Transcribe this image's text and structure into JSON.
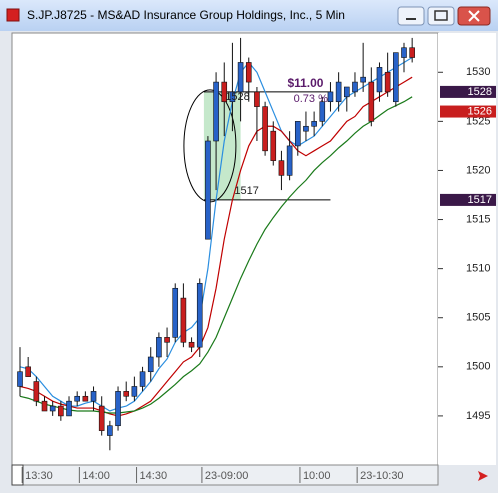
{
  "window": {
    "title": "S.JP.J8725 - MS&AD Insurance Group Holdings, Inc., 5 Min"
  },
  "chart_data": {
    "type": "candlestick",
    "categories": [
      null,
      "13:30",
      null,
      null,
      null,
      null,
      null,
      null,
      "14:00",
      null,
      null,
      null,
      null,
      null,
      null,
      "14:30",
      null,
      null,
      null,
      null,
      null,
      null,
      null,
      "23-09:00",
      null,
      null,
      null,
      null,
      null,
      null,
      null,
      null,
      null,
      null,
      null,
      "10:00",
      null,
      null,
      null,
      null,
      null,
      null,
      "23-10:30",
      null,
      null,
      null,
      null,
      null,
      null
    ],
    "open": [
      1498,
      1500,
      1498.5,
      1496.5,
      1495.5,
      1496,
      1495,
      1496.5,
      1497,
      1496.5,
      1496,
      1493,
      1494,
      1497.5,
      1497,
      1498,
      1499.5,
      1501,
      1503,
      1503,
      1507,
      1502.5,
      1502,
      1513,
      1523,
      1529,
      1527,
      1528,
      1531,
      1528,
      1526.5,
      1524,
      1521,
      1519.5,
      1522.5,
      1524,
      1524.5,
      1525,
      1527,
      1527,
      1527.5,
      1528,
      1529,
      1529,
      1528,
      1530,
      1527,
      1531.5,
      1532.5
    ],
    "high": [
      1502,
      1501,
      1499,
      1497,
      1496.5,
      1496.5,
      1497,
      1497.5,
      1497.5,
      1498,
      1497,
      1494.5,
      1498,
      1498.5,
      1499,
      1500,
      1502,
      1503.5,
      1504,
      1508.5,
      1508.5,
      1503,
      1509,
      1523.5,
      1530,
      1531,
      1533,
      1533.5,
      1531.5,
      1528.5,
      1527,
      1525,
      1522,
      1524,
      1525,
      1526,
      1526,
      1527.5,
      1529,
      1530,
      1528.5,
      1530,
      1533,
      1530.5,
      1531,
      1532,
      1532,
      1533,
      1533.5
    ],
    "low": [
      1497,
      1499,
      1496,
      1495.5,
      1495,
      1494.5,
      1495,
      1496,
      1496.5,
      1495.5,
      1493,
      1491.5,
      1493.5,
      1496.5,
      1496.5,
      1497.5,
      1498.5,
      1500,
      1501,
      1502.5,
      1502,
      1501.5,
      1501,
      1513,
      1518,
      1523.5,
      1524,
      1525,
      1527,
      1523,
      1521.5,
      1520.5,
      1518,
      1519,
      1521.5,
      1523,
      1523.5,
      1524.5,
      1526,
      1526,
      1526,
      1527.5,
      1528,
      1524.5,
      1527,
      1527.5,
      1526.5,
      1530,
      1531
    ],
    "close": [
      1499.5,
      1499,
      1496.5,
      1495.5,
      1496,
      1495,
      1496.5,
      1497,
      1496.5,
      1497.5,
      1493.5,
      1494,
      1497.5,
      1497,
      1498,
      1499.5,
      1501,
      1503,
      1502.5,
      1508,
      1502.5,
      1502,
      1508.5,
      1523,
      1529,
      1527,
      1528,
      1531,
      1529,
      1526.5,
      1522,
      1521,
      1519.5,
      1522.5,
      1525,
      1524.5,
      1525,
      1527,
      1528,
      1529,
      1528.5,
      1529,
      1529.5,
      1525,
      1530.5,
      1528,
      1532,
      1532.5,
      1531.5
    ],
    "up_color": "#2862c8",
    "down_color": "#c81e1e",
    "lines": [
      {
        "color": "#2a8ee0",
        "values": [
          1500,
          1499.8,
          1499,
          1498,
          1497,
          1496.5,
          1496,
          1496,
          1496.3,
          1496.5,
          1496,
          1495.5,
          1495.8,
          1496,
          1496.5,
          1497.5,
          1498.5,
          1499.8,
          1500.8,
          1502.5,
          1503.5,
          1504,
          1505,
          1510,
          1517,
          1523,
          1527,
          1530,
          1531,
          1530,
          1528,
          1526,
          1524,
          1523,
          1522.5,
          1523,
          1523.5,
          1524.5,
          1525.5,
          1526.5,
          1527.5,
          1528,
          1528.5,
          1529,
          1529.5,
          1530,
          1530.5,
          1531,
          1531.5
        ]
      },
      {
        "color": "#c00000",
        "values": [
          1498,
          1497.8,
          1497.5,
          1497,
          1496.5,
          1496.2,
          1496,
          1495.8,
          1495.8,
          1495.8,
          1495.5,
          1495.2,
          1495,
          1495.2,
          1495.5,
          1496,
          1496.5,
          1497.5,
          1498.5,
          1499.5,
          1500.5,
          1501,
          1502,
          1504,
          1508,
          1513,
          1517,
          1520,
          1522.5,
          1524,
          1524.5,
          1524.5,
          1524,
          1523,
          1522,
          1521.5,
          1522,
          1522.5,
          1523,
          1524,
          1525,
          1525.5,
          1526.5,
          1527,
          1527.5,
          1528,
          1528.5,
          1529,
          1529.5
        ]
      },
      {
        "color": "#1a7a1a",
        "values": [
          1497,
          1496.8,
          1496.5,
          1496.2,
          1496,
          1495.8,
          1495.6,
          1495.5,
          1495.5,
          1495.5,
          1495.4,
          1495.3,
          1495.3,
          1495.4,
          1495.5,
          1495.8,
          1496.2,
          1496.8,
          1497.5,
          1498.2,
          1499,
          1499.6,
          1500.3,
          1501.5,
          1503,
          1505,
          1507,
          1509,
          1510.8,
          1512.5,
          1514,
          1515.2,
          1516.3,
          1517.3,
          1518.2,
          1519,
          1520,
          1520.8,
          1521.5,
          1522.3,
          1523,
          1523.8,
          1524.5,
          1525,
          1525.6,
          1526.2,
          1526.6,
          1527,
          1527.5
        ]
      }
    ],
    "ylim": [
      1490,
      1534
    ],
    "yticks": [
      1495,
      1500,
      1505,
      1510,
      1515,
      1520,
      1525,
      1530
    ],
    "range": {
      "high": 1528,
      "low": 1517,
      "amount": "$11.00",
      "percent": "0.73 %"
    },
    "price_tags": [
      {
        "value": 1528,
        "color": "#3a1848"
      },
      {
        "value": 1526,
        "color": "#c81e1e"
      },
      {
        "value": 1517,
        "color": "#3a1848"
      }
    ]
  }
}
